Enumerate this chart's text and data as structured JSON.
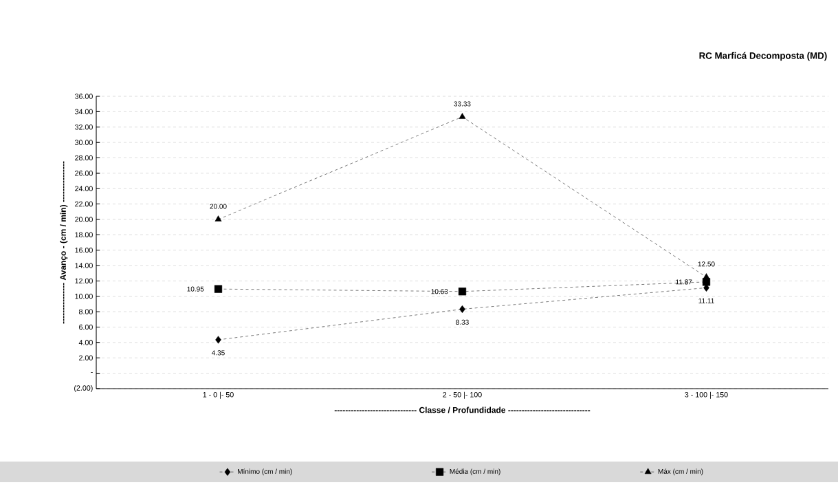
{
  "chart_data": {
    "type": "line",
    "title": "RC Marficá Decomposta (MD)",
    "xlabel": "------------------------------ Classe / Profundidade ------------------------------",
    "ylabel": "--------------- Avanço - (cm / min) ---------------",
    "categories": [
      "1 - 0 |- 50",
      "2 - 50 |- 100",
      "3 - 100 |- 150"
    ],
    "series": [
      {
        "name": "Mínimo (cm / min)",
        "color": "#000000",
        "marker": "diamond",
        "values": [
          4.35,
          8.33,
          11.11
        ],
        "value_labels": [
          "4.35",
          "8.33",
          "11.11"
        ]
      },
      {
        "name": "Média (cm / min)",
        "color": "#000000",
        "marker": "square",
        "values": [
          10.95,
          10.63,
          11.87
        ],
        "value_labels": [
          "10.95",
          "10.63",
          "11.87"
        ]
      },
      {
        "name": "Máx (cm / min)",
        "color": "#000000",
        "marker": "triangle",
        "values": [
          20.0,
          33.33,
          12.5
        ],
        "value_labels": [
          "20.00",
          "33.33",
          "12.50"
        ]
      }
    ],
    "ylim": [
      -2,
      36
    ],
    "yticks": [
      {
        "value": -2,
        "label": "(2.00)"
      },
      {
        "value": 0,
        "label": "-"
      },
      {
        "value": 2,
        "label": "2.00"
      },
      {
        "value": 4,
        "label": "4.00"
      },
      {
        "value": 6,
        "label": "6.00"
      },
      {
        "value": 8,
        "label": "8.00"
      },
      {
        "value": 10,
        "label": "10.00"
      },
      {
        "value": 12,
        "label": "12.00"
      },
      {
        "value": 14,
        "label": "14.00"
      },
      {
        "value": 16,
        "label": "16.00"
      },
      {
        "value": 18,
        "label": "18.00"
      },
      {
        "value": 20,
        "label": "20.00"
      },
      {
        "value": 22,
        "label": "22.00"
      },
      {
        "value": 24,
        "label": "24.00"
      },
      {
        "value": 26,
        "label": "26.00"
      },
      {
        "value": 28,
        "label": "28.00"
      },
      {
        "value": 30,
        "label": "30.00"
      },
      {
        "value": 32,
        "label": "32.00"
      },
      {
        "value": 34,
        "label": "34.00"
      },
      {
        "value": 36,
        "label": "36.00"
      }
    ],
    "grid": "y",
    "legend": "bottom",
    "line_style": "dashed"
  }
}
